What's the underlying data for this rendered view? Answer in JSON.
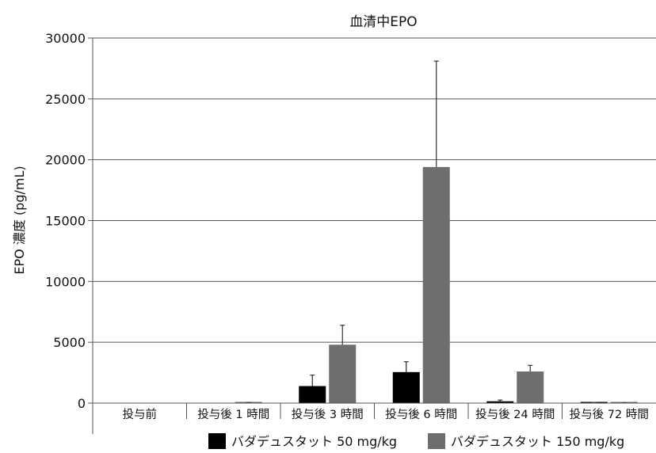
{
  "chart_data": {
    "type": "bar",
    "title": "血清中EPO",
    "ylabel": "EPO 濃度 (pg/mL)",
    "xlabel": "",
    "ylim": [
      0,
      30000
    ],
    "yticks": [
      0,
      5000,
      10000,
      15000,
      20000,
      25000,
      30000
    ],
    "categories": [
      "投与前",
      "投与後 1 時間",
      "投与後 3 時間",
      "投与後 6 時間",
      "投与後 24 時間",
      "投与後 72 時間"
    ],
    "series": [
      {
        "name": "バダデュスタット 50 mg/kg",
        "color": "#000000",
        "values": [
          0,
          0,
          1400,
          2550,
          150,
          30
        ],
        "error": [
          0,
          0,
          900,
          850,
          100,
          20
        ]
      },
      {
        "name": "バダデュスタット 150 mg/kg",
        "color": "#6e6e6e",
        "values": [
          0,
          40,
          4800,
          19400,
          2600,
          20
        ],
        "error": [
          0,
          10,
          1600,
          8700,
          500,
          10
        ]
      }
    ],
    "grid": true,
    "legend": "bottom"
  }
}
